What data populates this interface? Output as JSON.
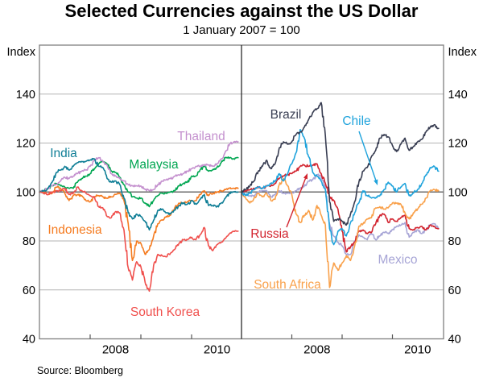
{
  "header": {
    "title": "Selected Currencies against the US Dollar",
    "subtitle": "1 January 2007 = 100"
  },
  "footer": {
    "source": "Source: Bloomberg"
  },
  "chart_data": {
    "type": "line",
    "title": "Selected Currencies against the US Dollar",
    "subtitle": "1 January 2007 = 100",
    "unit_label": "Index",
    "ylim": [
      40,
      160
    ],
    "yticks": [
      140,
      120,
      100,
      80,
      60,
      40
    ],
    "reference_line": 100,
    "x_start": "2007-01",
    "x_step_months": 1,
    "x_end": "2010-12",
    "x_year_ticks": [
      2008,
      2009,
      2010
    ],
    "x_axis_labels": [
      "2008",
      "2010"
    ],
    "grid": true,
    "panels": [
      {
        "side": "left",
        "series": [
          {
            "name": "Indonesia",
            "color": "#F57C21",
            "values": [
              100,
              100,
              99,
              99.5,
              102,
              101.5,
              99.5,
              96.5,
              98.5,
              99,
              98.5,
              96.5,
              96,
              98,
              98.5,
              98,
              97.5,
              98,
              99,
              99.5,
              96.5,
              87,
              72,
              80,
              79,
              74.5,
              76.5,
              82,
              87,
              88.5,
              90,
              90.5,
              93.5,
              95.5,
              95.5,
              96,
              96.5,
              96.5,
              99,
              100.5,
              98.5,
              99.5,
              100,
              100.5,
              101,
              101.5,
              101.5,
              101.5
            ]
          },
          {
            "name": "Malaysia",
            "color": "#00A651",
            "values": [
              100,
              100.5,
              101.5,
              102.5,
              103.5,
              102.5,
              102,
              101.5,
              101.5,
              104,
              105.5,
              106.5,
              107.5,
              109.5,
              111.5,
              112.5,
              111.5,
              108.5,
              108,
              106,
              103,
              100,
              98,
              97.5,
              97.5,
              95.5,
              94,
              96.5,
              98.5,
              99.5,
              99.5,
              100,
              100.5,
              102.5,
              103.5,
              104,
              106.5,
              106.5,
              109,
              110.5,
              108.5,
              109,
              110,
              112,
              114,
              114,
              113.5,
              114
            ]
          },
          {
            "name": "Thailand",
            "color": "#C490CE",
            "values": [
              100,
              100.5,
              101.5,
              102.5,
              103,
              104.5,
              106,
              105.5,
              106.5,
              107.5,
              108.5,
              109,
              110.5,
              113,
              114,
              112.5,
              111,
              107.5,
              106.5,
              105.5,
              104.5,
              103,
              102.5,
              102.5,
              102.5,
              101,
              100.5,
              101,
              103,
              104.5,
              105,
              105.5,
              106.5,
              107,
              107.5,
              108.5,
              109.5,
              110.5,
              110.5,
              111,
              111,
              110.5,
              111.5,
              113.5,
              116.5,
              119.5,
              120.5,
              120.5
            ]
          },
          {
            "name": "India",
            "color": "#0F7E96",
            "values": [
              100,
              100.5,
              101.5,
              104,
              108,
              109,
              110.5,
              109,
              110.5,
              112,
              112.5,
              112.5,
              113,
              113.5,
              110.5,
              110,
              105.5,
              104,
              104.5,
              103,
              97.5,
              91.5,
              89,
              91,
              90,
              88,
              84.5,
              88.5,
              92.5,
              93,
              91.5,
              91,
              92.5,
              94.5,
              95.5,
              95,
              96.5,
              95,
              97,
              99,
              94.5,
              94.5,
              94,
              95.5,
              97.5,
              99.5,
              100,
              100
            ]
          },
          {
            "name": "South Korea",
            "color": "#F0504D",
            "values": [
              100,
              99.5,
              99,
              100,
              100.5,
              100.5,
              101.5,
              99,
              99.5,
              102,
              100.5,
              99.5,
              98.5,
              98,
              94,
              93.5,
              90,
              89.5,
              92,
              91.5,
              84.5,
              69,
              64,
              71.5,
              69.5,
              63,
              59.5,
              70,
              74.5,
              74,
              73.5,
              75,
              76.5,
              79,
              80.5,
              80.5,
              81.5,
              80.5,
              82.5,
              85.5,
              78,
              76,
              78.5,
              79.5,
              81,
              83,
              84,
              84
            ]
          }
        ]
      },
      {
        "side": "right",
        "series": [
          {
            "name": "Mexico",
            "color": "#A7A5D6",
            "values": [
              100,
              99,
              98.5,
              98.5,
              100,
              100.5,
              100.5,
              98,
              99,
              100.5,
              99.5,
              99.5,
              99.5,
              100.5,
              101.5,
              102.5,
              104.5,
              105,
              107,
              106.5,
              101.5,
              87,
              82,
              79.5,
              78,
              74.5,
              74.5,
              80,
              82.5,
              81.5,
              80.5,
              83,
              80.5,
              82,
              83.5,
              83,
              84.5,
              86,
              86.5,
              87.5,
              81.5,
              83.5,
              84.5,
              83,
              84.5,
              86.5,
              87,
              85
            ]
          },
          {
            "name": "Russia",
            "color": "#D2232E",
            "values": [
              100,
              100.5,
              101,
              101.5,
              102,
              101.5,
              102.5,
              102.5,
              103.5,
              105.5,
              106.5,
              107,
              107.5,
              108.5,
              110.5,
              111,
              110.5,
              111,
              111.5,
              107.5,
              103.5,
              98,
              96.5,
              93,
              84,
              75.5,
              77.5,
              79.5,
              84,
              84.5,
              83,
              83.5,
              87,
              90.5,
              91,
              87.5,
              89,
              88,
              89.5,
              90.5,
              85,
              84.5,
              85.5,
              86,
              84.5,
              86.5,
              86,
              85
            ]
          },
          {
            "name": "South Africa",
            "color": "#F9A14B",
            "values": [
              100,
              97.5,
              95.5,
              97.5,
              99.5,
              98,
              99.5,
              96.5,
              97,
              103,
              105.5,
              102.5,
              99,
              91,
              87.5,
              90.5,
              92.5,
              88.5,
              94.5,
              90.5,
              86.5,
              61,
              71,
              68,
              71,
              74,
              72,
              78,
              86,
              87,
              89,
              89.5,
              93.5,
              94,
              93,
              93.5,
              95.5,
              95.5,
              95,
              91.5,
              89,
              91.5,
              93,
              95,
              97.5,
              100.5,
              101,
              100.5
            ]
          },
          {
            "name": "Chile",
            "color": "#1FA3DC",
            "values": [
              100,
              98.5,
              99.5,
              101,
              102,
              101.5,
              102.5,
              103.5,
              104.5,
              107.5,
              104.5,
              107.5,
              111.5,
              116,
              125.5,
              122,
              114.5,
              108,
              106.5,
              104.5,
              101,
              85,
              78.5,
              84,
              85,
              82,
              87.5,
              91.5,
              95.5,
              100.5,
              98.5,
              97.5,
              97.5,
              98.5,
              101,
              104,
              102.5,
              100,
              102,
              103.5,
              98.5,
              99.5,
              101,
              103.5,
              107,
              110,
              110.5,
              108.5
            ]
          },
          {
            "name": "Brazil",
            "color": "#383D52",
            "values": [
              100,
              101,
              102.5,
              104.5,
              108.5,
              110.5,
              113,
              109.5,
              111.5,
              118,
              120.5,
              119.5,
              120.5,
              123.5,
              124.5,
              126.5,
              129.5,
              132.5,
              134,
              136.5,
              123,
              96,
              88,
              89,
              88,
              86.5,
              91,
              96,
              104,
              108.5,
              110,
              114.5,
              117,
              122,
              123.5,
              122.5,
              119,
              116.5,
              119.5,
              122,
              117,
              118.5,
              120.5,
              121.5,
              124.5,
              126.5,
              127.5,
              126
            ]
          }
        ]
      }
    ],
    "annotations": {
      "callout_arrows": [
        {
          "series": "Chile"
        },
        {
          "series": "Russia"
        }
      ]
    }
  }
}
